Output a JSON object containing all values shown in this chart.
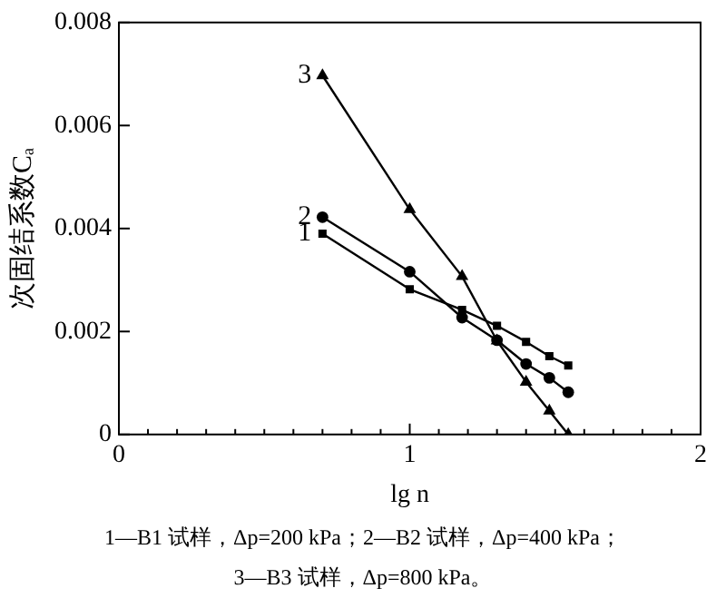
{
  "chart_data": {
    "type": "line",
    "xlabel": "lg n",
    "ylabel": "次固结系数Cₐ",
    "xlim": [
      0,
      2
    ],
    "ylim": [
      0,
      0.008
    ],
    "xticks": [
      0,
      {
        "value": 0.1,
        "label": null
      },
      {
        "value": 0.2,
        "label": null
      },
      {
        "value": 0.3,
        "label": null
      },
      {
        "value": 0.4,
        "label": null
      },
      {
        "value": 0.5,
        "label": null
      },
      {
        "value": 0.6,
        "label": null
      },
      {
        "value": 0.7,
        "label": null
      },
      {
        "value": 0.8,
        "label": null
      },
      {
        "value": 0.9,
        "label": null
      },
      1,
      {
        "value": 1.1,
        "label": null
      },
      {
        "value": 1.2,
        "label": null
      },
      {
        "value": 1.3,
        "label": null
      },
      {
        "value": 1.4,
        "label": null
      },
      {
        "value": 1.5,
        "label": null
      },
      {
        "value": 1.6,
        "label": null
      },
      {
        "value": 1.7,
        "label": null
      },
      {
        "value": 1.8,
        "label": null
      },
      {
        "value": 1.9,
        "label": null
      },
      2
    ],
    "yticks": [
      0,
      0.002,
      0.004,
      0.006,
      0.008
    ],
    "grid": false,
    "legend": false,
    "x": [
      0.7,
      1.0,
      1.18,
      1.3,
      1.4,
      1.48,
      1.545
    ],
    "series": [
      {
        "name": "1",
        "color": "#000000",
        "marker": "square",
        "values": [
          0.0039,
          0.00282,
          0.00242,
          0.00211,
          0.0018,
          0.00152,
          0.00134
        ]
      },
      {
        "name": "2",
        "color": "#000000",
        "marker": "circle",
        "values": [
          0.00422,
          0.00316,
          0.00227,
          0.00183,
          0.00137,
          0.0011,
          0.00082
        ]
      },
      {
        "name": "3",
        "color": "#000000",
        "marker": "triangle",
        "values": [
          0.00697,
          0.00437,
          0.00307,
          0.00182,
          0.00102,
          0.00046,
          0.0
        ]
      }
    ],
    "annotations": [
      "1—B1 试样，Δp=200 kPa；2—B2 试样，Δp=400 kPa；",
      "3—B3 试样，Δp=800 kPa。"
    ]
  }
}
